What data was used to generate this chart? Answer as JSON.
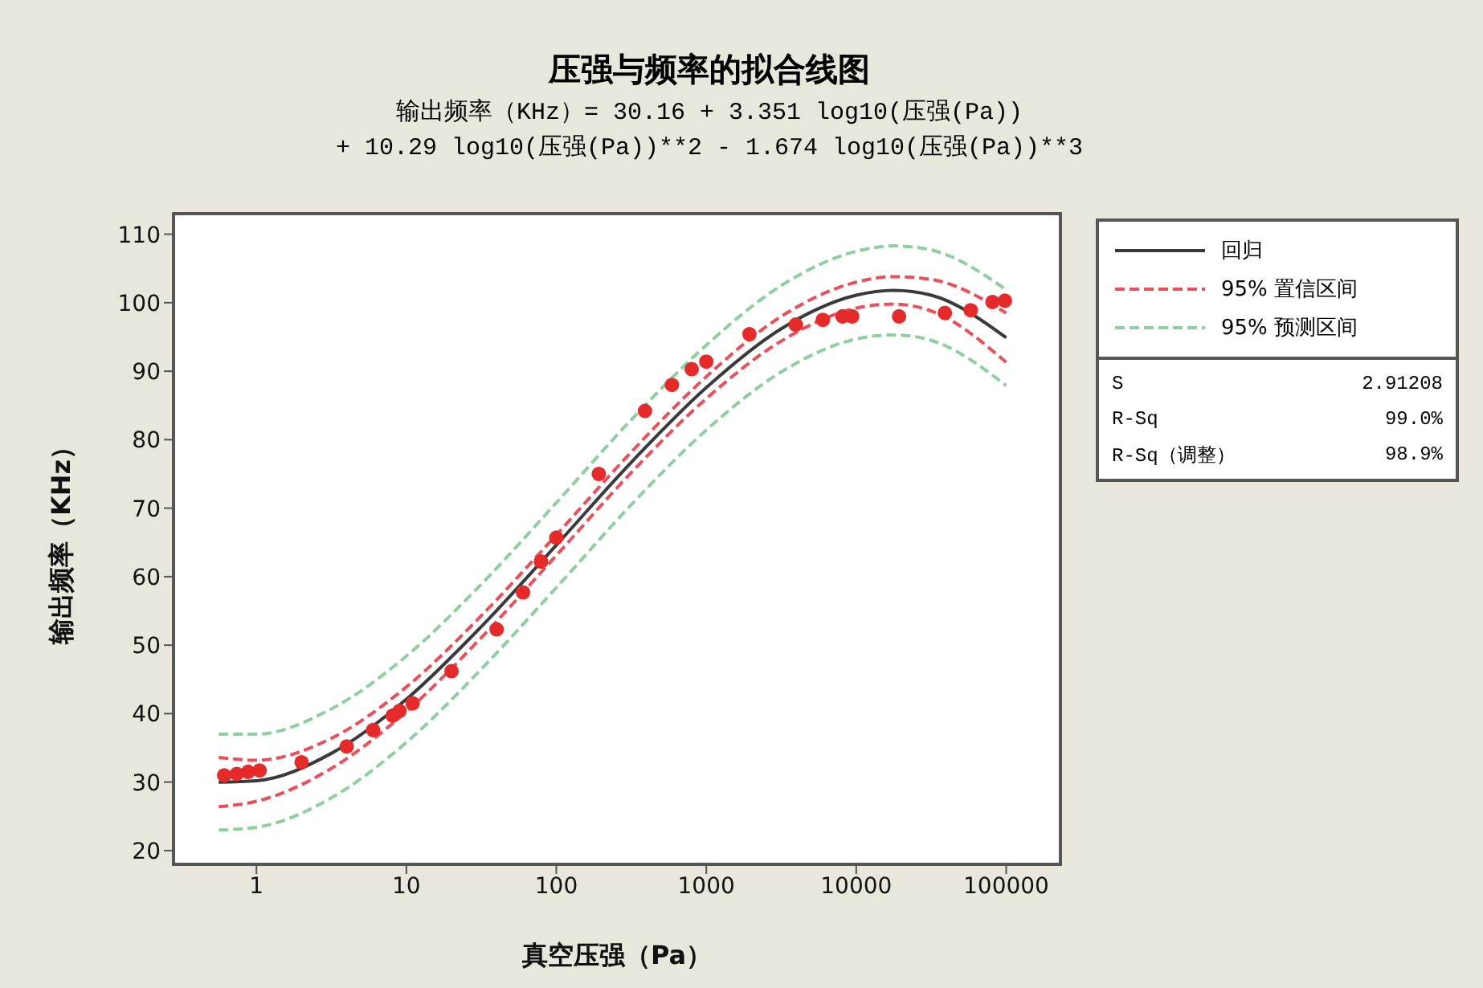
{
  "chart_data": {
    "type": "scatter",
    "title": "压强与频率的拟合线图",
    "subtitle": "输出频率（KHz）=  30.16 + 3.351 log10(压强(Pa))\n+ 10.29 log10(压强(Pa))**2 - 1.674 log10(压强(Pa))**3",
    "xlabel": "真空压强（Pa）",
    "ylabel": "输出频率（KHz）",
    "log": "x",
    "xlim": [
      0.28,
      230000
    ],
    "xticks": [
      1,
      10,
      100,
      1000,
      10000,
      100000
    ],
    "ylim": [
      18,
      113
    ],
    "yticks": [
      20,
      30,
      40,
      50,
      60,
      70,
      80,
      90,
      100,
      110
    ],
    "grid": false,
    "legend": "right",
    "series": [
      {
        "marker": "circle",
        "color": "#e52a2a",
        "x": [
          0.61,
          0.74,
          0.88,
          1.05,
          2,
          4,
          6,
          8.1,
          9,
          11,
          20,
          40,
          60,
          79,
          100,
          192,
          390,
          590,
          800,
          1000,
          1940,
          3950,
          5990,
          8100,
          9400,
          19300,
          39000,
          58000,
          81000,
          98000
        ],
        "values": [
          31,
          31.2,
          31.5,
          31.7,
          32.9,
          35.2,
          37.6,
          39.7,
          40.4,
          41.5,
          46.2,
          52.3,
          57.7,
          62.2,
          65.7,
          75,
          84.2,
          88,
          90.3,
          91.4,
          95.4,
          96.8,
          97.5,
          98,
          98,
          98,
          98.5,
          98.9,
          100.1,
          100.3
        ]
      },
      {
        "type": "line",
        "name": "回归",
        "color": "#3a3a3a",
        "line_style": "solid",
        "x": [
          0.56,
          1,
          3.16,
          10,
          31.6,
          100,
          316,
          1000,
          3162,
          10000,
          17783,
          31623,
          100000
        ],
        "values": [
          30,
          30.2,
          34.2,
          42.1,
          52.7,
          64.6,
          76.7,
          87.6,
          96.2,
          101.1,
          101.8,
          101.1,
          94.9
        ]
      },
      {
        "type": "line",
        "name": "95% 置信区间",
        "color": "#e8505a",
        "line_style": "dashed",
        "x": [
          0.56,
          1,
          3.16,
          10,
          31.6,
          100,
          316,
          1000,
          3162,
          10000,
          17783,
          31623,
          100000
        ],
        "values": [
          33.6,
          33.2,
          36.4,
          43.9,
          54.3,
          66.1,
          78.2,
          89.2,
          98,
          103,
          103.8,
          103.4,
          98.5
        ]
      },
      {
        "type": "line",
        "color": "#e8505a",
        "line_style": "dashed",
        "x": [
          0.56,
          1,
          3.16,
          10,
          31.6,
          100,
          316,
          1000,
          3162,
          10000,
          17783,
          31623,
          100000
        ],
        "values": [
          26.4,
          27.2,
          32,
          40.3,
          51.1,
          63.1,
          75.2,
          86,
          94.4,
          99.2,
          99.8,
          98.8,
          91.3
        ]
      },
      {
        "type": "line",
        "name": "95% 预测区间",
        "color": "#8fcf9f",
        "line_style": "dashed",
        "x": [
          0.56,
          1,
          3.16,
          10,
          31.6,
          100,
          316,
          1000,
          3162,
          10000,
          17783,
          31623,
          100000
        ],
        "values": [
          37,
          37,
          40.7,
          48.4,
          58.9,
          70.8,
          82.9,
          93.8,
          102.5,
          107.5,
          108.3,
          107.7,
          101.9
        ]
      },
      {
        "type": "line",
        "color": "#8fcf9f",
        "line_style": "dashed",
        "x": [
          0.56,
          1,
          3.16,
          10,
          31.6,
          100,
          316,
          1000,
          3162,
          10000,
          17783,
          31623,
          100000
        ],
        "values": [
          23,
          23.4,
          27.7,
          35.8,
          46.5,
          58.4,
          70.5,
          81.4,
          89.9,
          94.7,
          95.3,
          94.5,
          87.9
        ]
      }
    ],
    "annotations": [
      "S 2.91208",
      "R-Sq 99.0%",
      "R-Sq（调整） 98.9%"
    ]
  }
}
